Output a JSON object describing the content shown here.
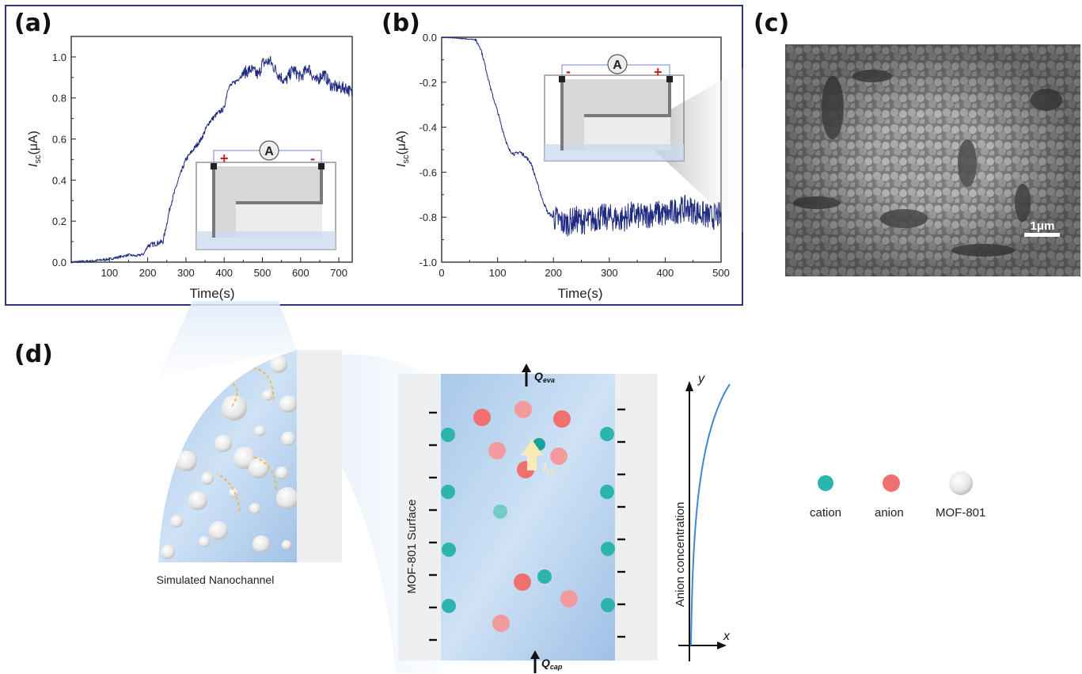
{
  "panels": {
    "a": "(a)",
    "b": "(b)",
    "c": "(c)",
    "d": "(d)"
  },
  "colors": {
    "trace": "#1f2a80",
    "frame": "#2a3476",
    "cation": "#2bb5ac",
    "anion": "#f07070",
    "anion_light": "#f39a9e",
    "curve": "#3d86d6",
    "isc_arrow": "#fbe9b8",
    "plus_minus": "#cc1f1f"
  },
  "chart_data": [
    {
      "id": "a",
      "type": "line",
      "title": "",
      "xlabel": "Time(s)",
      "ylabel_main": "I",
      "ylabel_sub": "sc",
      "ylabel_unit": "(μA)",
      "xlim": [
        0,
        735
      ],
      "ylim": [
        0,
        1.1
      ],
      "xticks": [
        100,
        200,
        300,
        400,
        500,
        600,
        700
      ],
      "xtick_labels": [
        "100",
        "200",
        "300",
        "400",
        "500",
        "600",
        "700"
      ],
      "yticks": [
        0.0,
        0.2,
        0.4,
        0.6,
        0.8,
        1.0
      ],
      "ytick_labels": [
        "0.0",
        "0.2",
        "0.4",
        "0.6",
        "0.8",
        "1.0"
      ],
      "grid": false,
      "series": [
        {
          "name": "Isc",
          "x": [
            0,
            50,
            100,
            150,
            170,
            190,
            200,
            220,
            240,
            260,
            280,
            300,
            320,
            340,
            360,
            380,
            400,
            410,
            430,
            450,
            470,
            490,
            500,
            520,
            540,
            560,
            580,
            600,
            620,
            640,
            660,
            680,
            700,
            720,
            735
          ],
          "y": [
            0.0,
            0.005,
            0.015,
            0.035,
            0.03,
            0.04,
            0.08,
            0.09,
            0.1,
            0.28,
            0.4,
            0.5,
            0.55,
            0.6,
            0.68,
            0.72,
            0.75,
            0.85,
            0.88,
            0.92,
            0.94,
            0.91,
            0.97,
            0.98,
            0.92,
            0.88,
            0.94,
            0.9,
            0.95,
            0.88,
            0.92,
            0.86,
            0.85,
            0.85,
            0.82
          ]
        }
      ],
      "inset": {
        "meter_label": "A",
        "left_sign": "+",
        "right_sign": "-"
      }
    },
    {
      "id": "b",
      "type": "line",
      "title": "",
      "xlabel": "Time(s)",
      "ylabel_main": "I",
      "ylabel_sub": "sc",
      "ylabel_unit": "(μA)",
      "xlim": [
        0,
        500
      ],
      "ylim": [
        -1.0,
        0.0
      ],
      "xticks": [
        0,
        100,
        200,
        300,
        400,
        500
      ],
      "xtick_labels": [
        "0",
        "100",
        "200",
        "300",
        "400",
        "500"
      ],
      "yticks": [
        0.0,
        -0.2,
        -0.4,
        -0.6,
        -0.8,
        -1.0
      ],
      "ytick_labels": [
        "0.0",
        "-0.2",
        "-0.4",
        "-0.6",
        "-0.8",
        "-1.0"
      ],
      "grid": false,
      "series": [
        {
          "name": "Isc",
          "x": [
            0,
            30,
            60,
            70,
            80,
            90,
            100,
            110,
            120,
            130,
            140,
            150,
            160,
            170,
            180,
            190,
            200,
            220,
            240,
            260,
            280,
            300,
            320,
            340,
            360,
            380,
            400,
            420,
            440,
            460,
            480,
            500
          ],
          "y": [
            0.0,
            -0.005,
            -0.01,
            -0.05,
            -0.15,
            -0.25,
            -0.33,
            -0.42,
            -0.5,
            -0.52,
            -0.51,
            -0.53,
            -0.56,
            -0.64,
            -0.72,
            -0.78,
            -0.8,
            -0.83,
            -0.81,
            -0.82,
            -0.8,
            -0.8,
            -0.81,
            -0.79,
            -0.8,
            -0.78,
            -0.79,
            -0.77,
            -0.76,
            -0.78,
            -0.8,
            -0.79
          ]
        }
      ],
      "inset": {
        "meter_label": "A",
        "left_sign": "-",
        "right_sign": "+"
      }
    }
  ],
  "sem": {
    "scale_bar": "1μm"
  },
  "schematic": {
    "nanochannel_caption": "Simulated Nanochannel",
    "surface_label": "MOF-801 Surface",
    "q_eva": "Q",
    "q_eva_sub": "eva",
    "q_cap": "Q",
    "q_cap_sub": "cap",
    "isc_main": "I",
    "isc_sub": "sc",
    "axis_y": "y",
    "axis_x": "x",
    "axis_ylabel": "Anion concentration"
  },
  "legend": [
    {
      "label": "cation",
      "kind": "cation"
    },
    {
      "label": "anion",
      "kind": "anion"
    },
    {
      "label": "MOF-801",
      "kind": "mof"
    }
  ]
}
